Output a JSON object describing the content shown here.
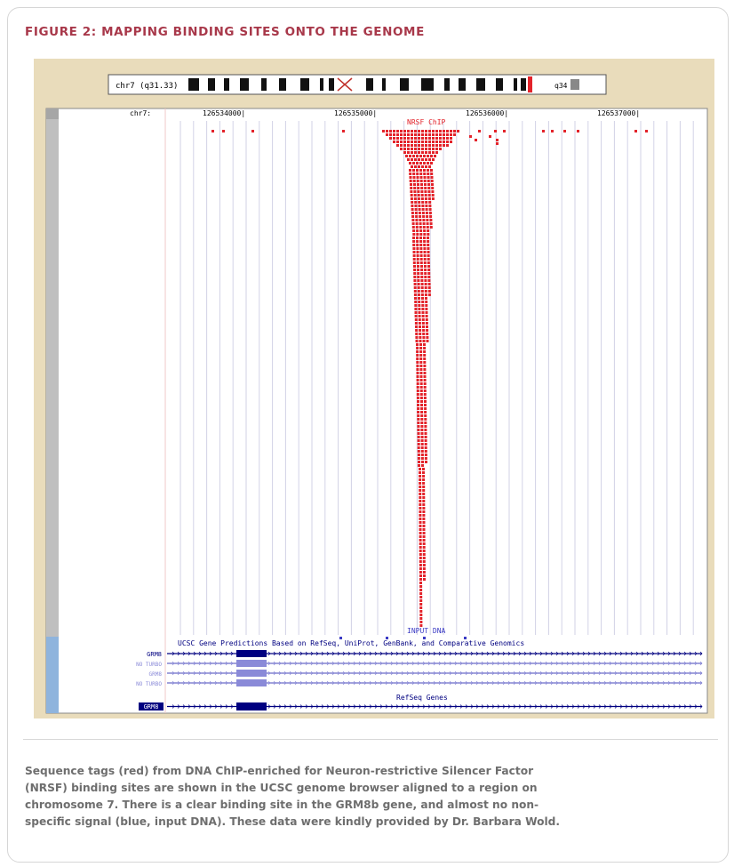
{
  "figure": {
    "title": "FIGURE 2: MAPPING BINDING SITES ONTO THE GENOME"
  },
  "browser": {
    "ideogram_label": "chr7 (q31.33)",
    "ideogram_band_label": "q34",
    "chrom_label": "chr7:",
    "positions": [
      "126534000|",
      "126535000|",
      "126536000|",
      "126537000|"
    ],
    "chip_track_label": "NRSF ChIP",
    "input_track_label": "INPUT DNA",
    "gene_track_title": "UCSC Gene Predictions Based on RefSeq, UniProt, GenBank, and Comparative Genomics",
    "gene_rows": [
      "GRM8",
      "NO TURBO",
      "GRM8",
      "NO TURBO"
    ],
    "refseq_title": "RefSeq Genes",
    "refseq_label": "GRM8",
    "colors": {
      "chip": "#e3232a",
      "input": "#3b3bc4",
      "gene": "#000080",
      "gene_light": "#8a8ad8",
      "frame": "#e9dcbb",
      "grid": "#d2d2e6"
    }
  },
  "caption": {
    "lines": [
      "Sequence tags (red) from DNA ChIP-enriched for Neuron-restrictive Silencer Factor",
      "(NRSF) binding sites are shown in the UCSC genome browser aligned to a region on",
      "chromosome 7. There is a clear binding site in the GRM8b gene, and almost no non-",
      "specific signal (blue, input DNA). These data were kindly provided by Dr. Barbara Wold."
    ]
  }
}
